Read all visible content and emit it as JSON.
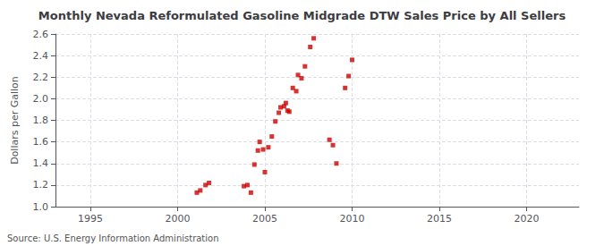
{
  "chart_data": {
    "type": "scatter",
    "title": "Monthly Nevada Reformulated Gasoline Midgrade DTW Sales Price by All Sellers",
    "ylabel": "Dollars per Gallon",
    "annotation": "Source: U.S. Energy Information Administration",
    "x": [
      2001.1,
      2001.3,
      2001.6,
      2001.8,
      2003.8,
      2004.0,
      2004.2,
      2004.4,
      2004.6,
      2004.7,
      2004.9,
      2005.0,
      2005.2,
      2005.4,
      2005.6,
      2005.8,
      2005.9,
      2006.1,
      2006.2,
      2006.3,
      2006.4,
      2006.6,
      2006.8,
      2006.9,
      2007.1,
      2007.3,
      2007.6,
      2007.8,
      2008.7,
      2008.9,
      2009.1,
      2009.6,
      2009.8,
      2010.0
    ],
    "values": [
      1.13,
      1.15,
      1.2,
      1.22,
      1.19,
      1.2,
      1.13,
      1.39,
      1.52,
      1.6,
      1.53,
      1.32,
      1.55,
      1.65,
      1.79,
      1.87,
      1.92,
      1.93,
      1.96,
      1.89,
      1.88,
      2.1,
      2.07,
      2.22,
      2.19,
      2.3,
      2.48,
      2.56,
      1.62,
      1.57,
      1.4,
      2.1,
      2.21,
      2.36
    ],
    "color": "#CC0000",
    "marker": "square",
    "xlim": [
      1993,
      2023
    ],
    "ylim": [
      1.0,
      2.6
    ],
    "xticks": [
      1995,
      2000,
      2005,
      2010,
      2015,
      2020
    ],
    "yticks": [
      {
        "value": 1.0,
        "label": "1.0"
      },
      1.2,
      1.4,
      1.6,
      1.8,
      {
        "value": 2.0,
        "label": "2.0"
      },
      2.2,
      2.4,
      2.6
    ],
    "grid": true
  }
}
